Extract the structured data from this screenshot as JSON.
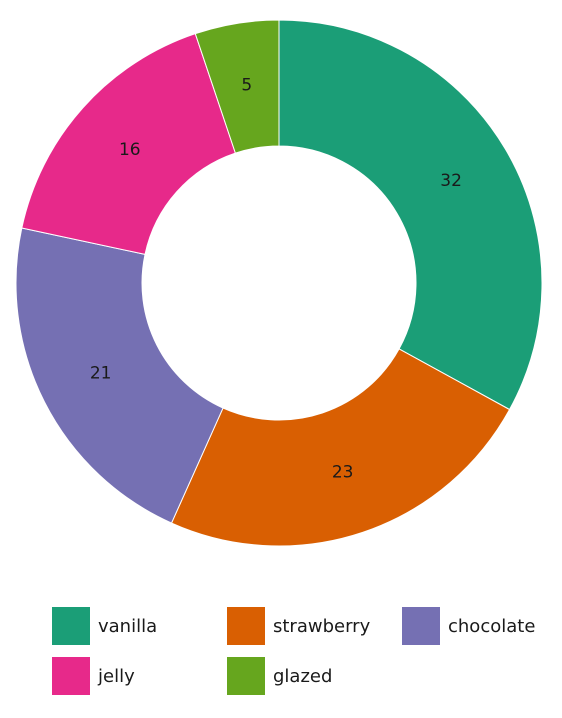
{
  "chart_data": {
    "type": "pie",
    "variant": "donut",
    "slices": [
      {
        "label": "vanilla",
        "value": 32,
        "color": "#1b9e77"
      },
      {
        "label": "strawberry",
        "value": 23,
        "color": "#d95f02"
      },
      {
        "label": "chocolate",
        "value": 21,
        "color": "#7570b3"
      },
      {
        "label": "jelly",
        "value": 16,
        "color": "#e7298a"
      },
      {
        "label": "glazed",
        "value": 5,
        "color": "#66a61e"
      }
    ],
    "legend_position": "bottom"
  },
  "legend": {
    "items": [
      {
        "label": "vanilla",
        "color": "#1b9e77"
      },
      {
        "label": "strawberry",
        "color": "#d95f02"
      },
      {
        "label": "chocolate",
        "color": "#7570b3"
      },
      {
        "label": "jelly",
        "color": "#e7298a"
      },
      {
        "label": "glazed",
        "color": "#66a61e"
      }
    ]
  }
}
